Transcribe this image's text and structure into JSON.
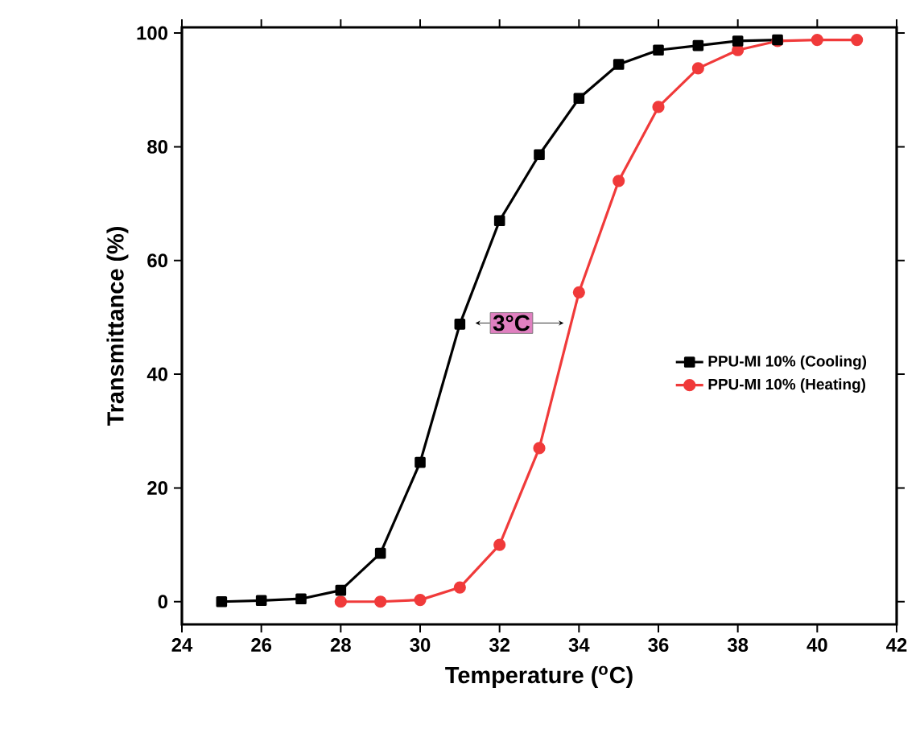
{
  "chart_data": {
    "type": "line",
    "xlabel": "Temperature ($^{o}$C)",
    "ylabel": "Transmittance (%)",
    "xlim": [
      24,
      42
    ],
    "ylim": [
      -4,
      101
    ],
    "xticks": [
      24,
      26,
      28,
      30,
      32,
      34,
      36,
      38,
      40,
      42
    ],
    "yticks": [
      0,
      20,
      40,
      60,
      80,
      100
    ],
    "legend": "right",
    "grid": false,
    "series": [
      {
        "name": "PPU-MI 10% (Cooling)",
        "color": "#000000",
        "marker": "square",
        "x": [
          25,
          26,
          27,
          28,
          29,
          30,
          31,
          32,
          33,
          34,
          35,
          36,
          37,
          38,
          39
        ],
        "values": [
          0,
          0.2,
          0.5,
          2,
          8.5,
          24.5,
          48.8,
          67,
          78.6,
          88.5,
          94.5,
          97,
          97.8,
          98.6,
          98.8
        ]
      },
      {
        "name": "PPU-MI 10% (Heating)",
        "color": "#f03a3a",
        "marker": "circle",
        "x": [
          28,
          29,
          30,
          31,
          32,
          33,
          34,
          35,
          36,
          37,
          38,
          39,
          40,
          41
        ],
        "values": [
          0,
          0,
          0.3,
          2.5,
          10,
          27,
          54.4,
          74,
          87,
          93.8,
          97,
          98.6,
          98.8,
          98.8
        ]
      }
    ],
    "annotations": [
      {
        "text": "3°C",
        "x": 32.3,
        "y": 49
      }
    ]
  }
}
